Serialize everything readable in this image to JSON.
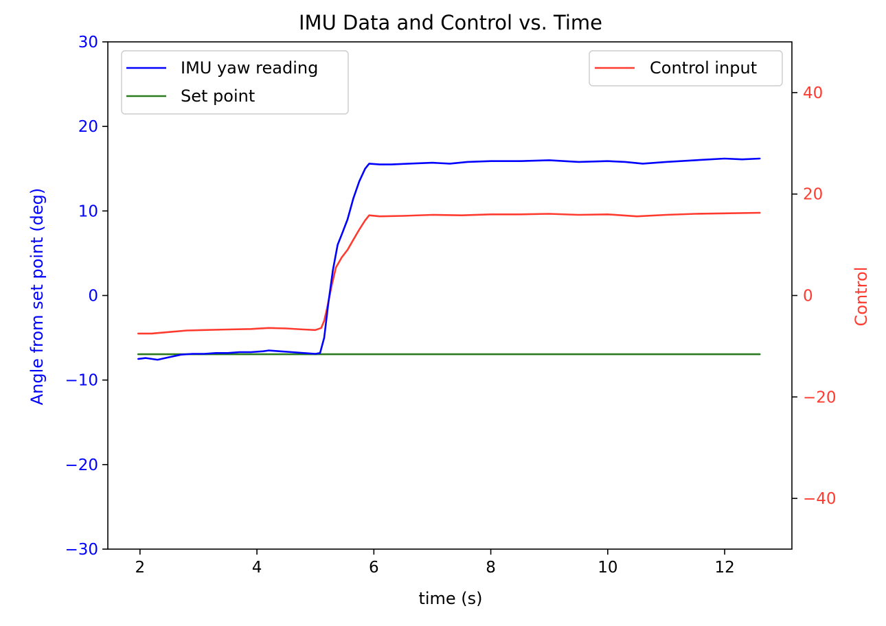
{
  "chart_data": {
    "type": "line",
    "title": "IMU Data and Control vs. Time",
    "xlabel": "time (s)",
    "ylabel_left": "Angle from set point (deg)",
    "ylabel_right": "Control",
    "xlim": [
      1.45,
      13.15
    ],
    "ylim_left": [
      -30,
      30
    ],
    "ylim_right": [
      -50,
      50
    ],
    "xticks": [
      2,
      4,
      6,
      8,
      10,
      12
    ],
    "yticks_left": [
      -30,
      -20,
      -10,
      0,
      10,
      20,
      30
    ],
    "yticks_right": [
      -40,
      -20,
      0,
      20,
      40
    ],
    "xtick_labels": [
      "2",
      "4",
      "6",
      "8",
      "10",
      "12"
    ],
    "ytick_labels_left": [
      "−30",
      "−20",
      "−10",
      "0",
      "10",
      "20",
      "30"
    ],
    "ytick_labels_right": [
      "−40",
      "−20",
      "0",
      "20",
      "40"
    ],
    "grid": false,
    "left_axis_color": "#0000ff",
    "right_axis_color": "#ff3b30",
    "legends": [
      {
        "placement": "upper left",
        "entries": [
          "IMU yaw reading",
          "Set point"
        ]
      },
      {
        "placement": "upper right",
        "entries": [
          "Control input"
        ]
      }
    ],
    "series": [
      {
        "name": "IMU yaw reading",
        "axis": "left",
        "color": "#0000ff",
        "x": [
          1.97,
          2.1,
          2.3,
          2.5,
          2.7,
          2.9,
          3.1,
          3.3,
          3.5,
          3.7,
          3.9,
          4.1,
          4.2,
          4.4,
          4.6,
          4.8,
          5.0,
          5.08,
          5.15,
          5.22,
          5.3,
          5.38,
          5.45,
          5.55,
          5.65,
          5.75,
          5.85,
          5.92,
          6.1,
          6.3,
          6.6,
          7.0,
          7.3,
          7.6,
          8.0,
          8.5,
          9.0,
          9.5,
          10.0,
          10.3,
          10.6,
          11.0,
          11.5,
          12.0,
          12.3,
          12.6
        ],
        "y": [
          -7.5,
          -7.4,
          -7.6,
          -7.3,
          -7.0,
          -6.9,
          -6.9,
          -6.8,
          -6.8,
          -6.7,
          -6.7,
          -6.6,
          -6.5,
          -6.6,
          -6.7,
          -6.8,
          -6.9,
          -6.8,
          -5.0,
          -1.0,
          3.0,
          6.0,
          7.2,
          9.0,
          11.5,
          13.5,
          15.0,
          15.6,
          15.5,
          15.5,
          15.6,
          15.7,
          15.6,
          15.8,
          15.9,
          15.9,
          16.0,
          15.8,
          15.9,
          15.8,
          15.6,
          15.8,
          16.0,
          16.2,
          16.1,
          16.2
        ]
      },
      {
        "name": "Set point",
        "axis": "left",
        "color": "#2a7a1f",
        "x": [
          1.97,
          12.6
        ],
        "y": [
          -6.95,
          -6.95
        ]
      },
      {
        "name": "Control input",
        "axis": "right",
        "color": "#ff3b30",
        "x": [
          1.97,
          2.2,
          2.5,
          2.8,
          3.1,
          3.5,
          3.9,
          4.2,
          4.5,
          4.8,
          5.0,
          5.1,
          5.15,
          5.2,
          5.28,
          5.35,
          5.45,
          5.55,
          5.65,
          5.75,
          5.85,
          5.92,
          6.1,
          6.5,
          7.0,
          7.5,
          8.0,
          8.5,
          9.0,
          9.5,
          10.0,
          10.5,
          11.0,
          11.5,
          12.0,
          12.6
        ],
        "y": [
          -7.5,
          -7.5,
          -7.2,
          -6.9,
          -6.8,
          -6.7,
          -6.6,
          -6.4,
          -6.5,
          -6.7,
          -6.8,
          -6.4,
          -5.0,
          -2.5,
          2.0,
          5.5,
          7.5,
          9.0,
          11.0,
          13.0,
          14.8,
          15.8,
          15.6,
          15.7,
          15.9,
          15.8,
          16.0,
          16.0,
          16.1,
          15.9,
          16.0,
          15.6,
          15.9,
          16.1,
          16.2,
          16.3
        ]
      }
    ]
  }
}
